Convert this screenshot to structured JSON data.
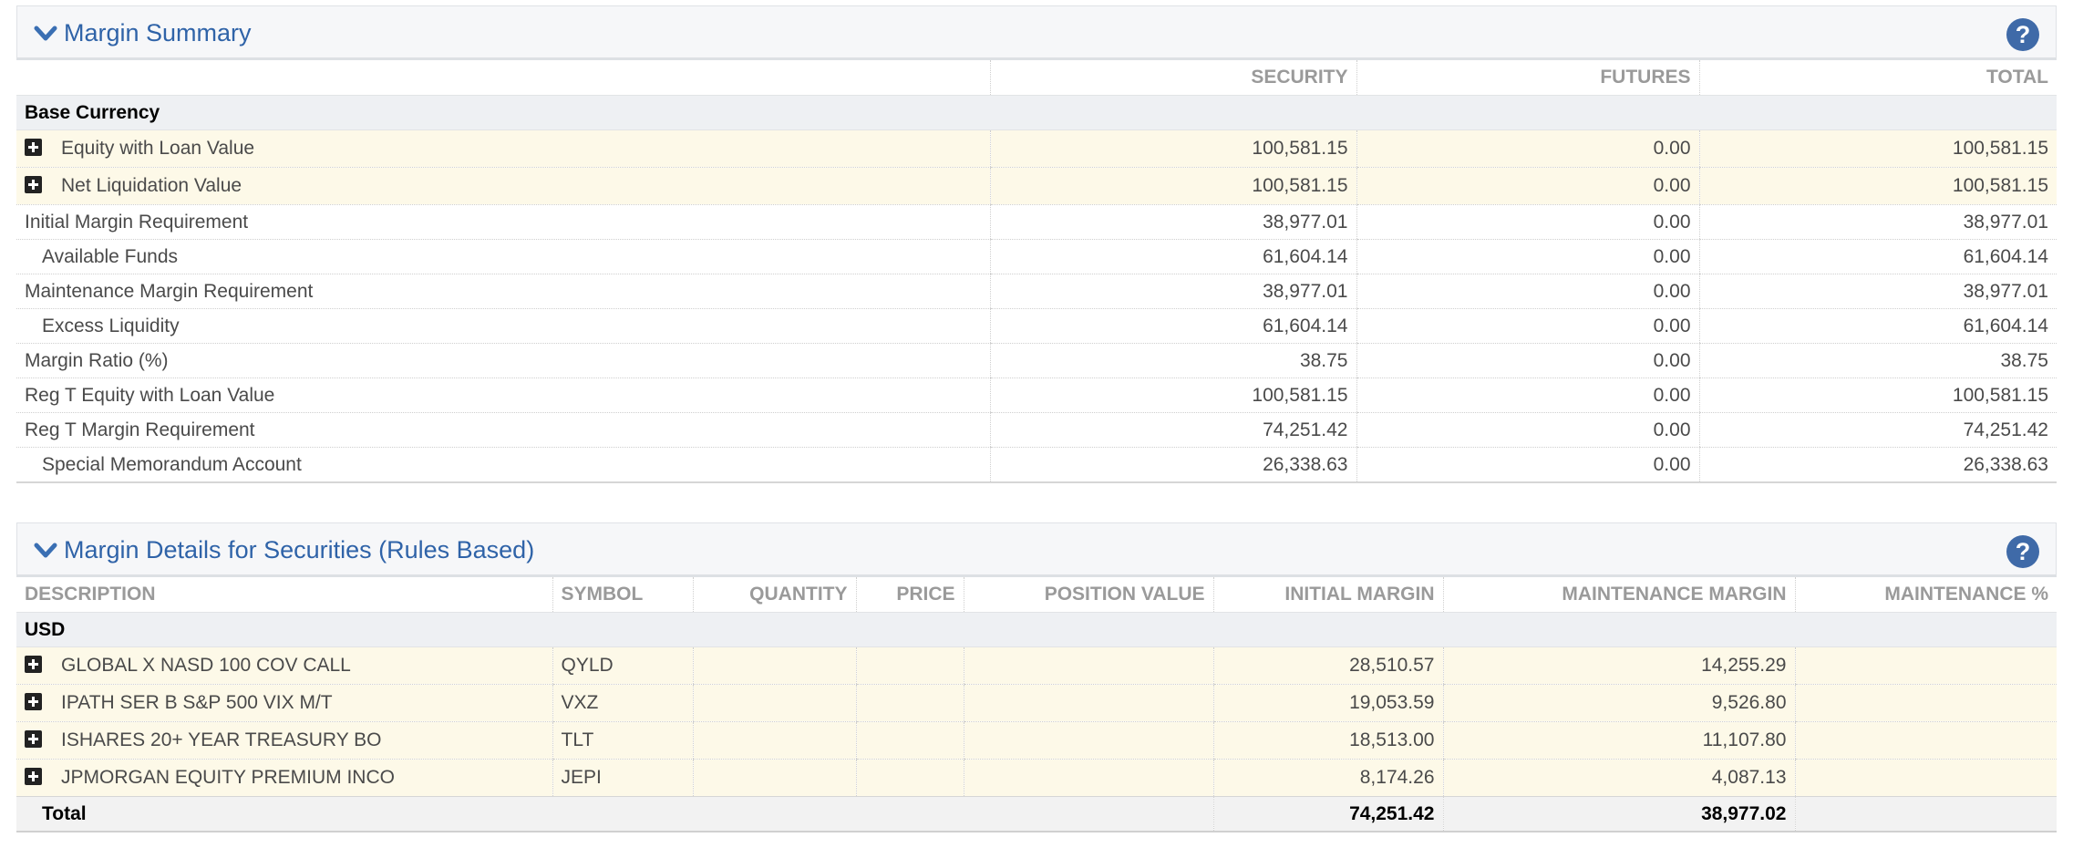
{
  "margin_summary": {
    "title": "Margin Summary",
    "help_label": "?",
    "columns": [
      "",
      "SECURITY",
      "FUTURES",
      "TOTAL"
    ],
    "group_label": "Base Currency",
    "rows": [
      {
        "label": "Equity with Loan Value",
        "security": "100,581.15",
        "futures": "0.00",
        "total": "100,581.15"
      },
      {
        "label": "Net Liquidation Value",
        "security": "100,581.15",
        "futures": "0.00",
        "total": "100,581.15"
      },
      {
        "label": "Initial Margin Requirement",
        "security": "38,977.01",
        "futures": "0.00",
        "total": "38,977.01"
      },
      {
        "label": "Available Funds",
        "security": "61,604.14",
        "futures": "0.00",
        "total": "61,604.14"
      },
      {
        "label": "Maintenance Margin Requirement",
        "security": "38,977.01",
        "futures": "0.00",
        "total": "38,977.01"
      },
      {
        "label": "Excess Liquidity",
        "security": "61,604.14",
        "futures": "0.00",
        "total": "61,604.14"
      },
      {
        "label": "Margin Ratio (%)",
        "security": "38.75",
        "futures": "0.00",
        "total": "38.75"
      },
      {
        "label": "Reg T Equity with Loan Value",
        "security": "100,581.15",
        "futures": "0.00",
        "total": "100,581.15"
      },
      {
        "label": "Reg T Margin Requirement",
        "security": "74,251.42",
        "futures": "0.00",
        "total": "74,251.42"
      },
      {
        "label": "Special Memorandum Account",
        "security": "26,338.63",
        "futures": "0.00",
        "total": "26,338.63"
      }
    ]
  },
  "margin_details": {
    "title": "Margin Details for Securities (Rules Based)",
    "help_label": "?",
    "columns": [
      "DESCRIPTION",
      "SYMBOL",
      "QUANTITY",
      "PRICE",
      "POSITION VALUE",
      "INITIAL MARGIN",
      "MAINTENANCE MARGIN",
      "MAINTENANCE %"
    ],
    "group_label": "USD",
    "rows": [
      {
        "description": "GLOBAL X NASD 100 COV CALL",
        "symbol": "QYLD",
        "quantity": "",
        "price": "",
        "position_value": "",
        "initial_margin": "28,510.57",
        "maintenance_margin": "14,255.29",
        "maintenance_pct": ""
      },
      {
        "description": "IPATH SER B S&P 500 VIX M/T",
        "symbol": "VXZ",
        "quantity": "",
        "price": "",
        "position_value": "",
        "initial_margin": "19,053.59",
        "maintenance_margin": "9,526.80",
        "maintenance_pct": ""
      },
      {
        "description": "ISHARES 20+ YEAR TREASURY BO",
        "symbol": "TLT",
        "quantity": "",
        "price": "",
        "position_value": "",
        "initial_margin": "18,513.00",
        "maintenance_margin": "11,107.80",
        "maintenance_pct": ""
      },
      {
        "description": "JPMORGAN EQUITY PREMIUM INCO",
        "symbol": "JEPI",
        "quantity": "",
        "price": "",
        "position_value": "",
        "initial_margin": "8,174.26",
        "maintenance_margin": "4,087.13",
        "maintenance_pct": ""
      }
    ],
    "total": {
      "label": "Total",
      "initial_margin": "74,251.42",
      "maintenance_margin": "38,977.02"
    }
  }
}
